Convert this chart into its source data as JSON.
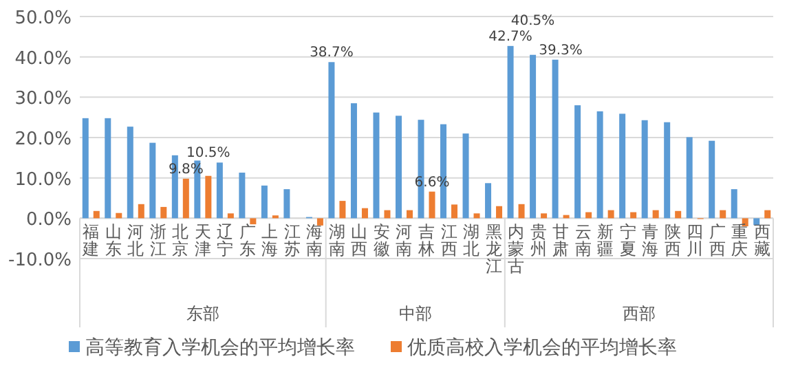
{
  "chart_data": {
    "type": "bar",
    "categories": [
      "福建",
      "山东",
      "河北",
      "浙江",
      "北京",
      "天津",
      "辽宁",
      "广东",
      "上海",
      "江苏",
      "海南",
      "湖南",
      "山西",
      "安徽",
      "河南",
      "吉林",
      "江西",
      "湖北",
      "黑龙江",
      "内蒙古",
      "贵州",
      "甘肃",
      "云南",
      "新疆",
      "宁夏",
      "青海",
      "陕西",
      "四川",
      "广西",
      "重庆",
      "西藏"
    ],
    "series": [
      {
        "name": "高等教育入学机会的平均增长率",
        "color": "#5b9bd5",
        "values": [
          24.8,
          24.8,
          22.7,
          18.7,
          15.6,
          14.3,
          13.8,
          11.3,
          8.1,
          7.2,
          0.3,
          38.7,
          28.5,
          26.2,
          25.4,
          24.4,
          23.3,
          21.0,
          8.7,
          42.7,
          40.5,
          39.3,
          28.0,
          26.5,
          25.9,
          24.3,
          23.8,
          20.1,
          19.2,
          7.2,
          -1.7
        ],
        "value_labels": [
          null,
          null,
          null,
          null,
          null,
          null,
          null,
          null,
          null,
          null,
          null,
          "38.7%",
          null,
          null,
          null,
          null,
          null,
          null,
          null,
          "42.7%",
          "40.5%",
          "39.3%",
          null,
          null,
          null,
          null,
          null,
          null,
          null,
          null,
          null
        ]
      },
      {
        "name": "优质高校入学机会的平均增长率",
        "color": "#ed7d31",
        "values": [
          1.8,
          1.3,
          3.5,
          2.8,
          9.8,
          10.5,
          1.2,
          -1.5,
          0.7,
          0.0,
          -1.8,
          4.3,
          2.5,
          2.0,
          2.0,
          6.6,
          3.4,
          1.2,
          3.0,
          3.5,
          1.2,
          0.8,
          1.5,
          2.0,
          1.5,
          2.0,
          1.8,
          -0.2,
          2.0,
          -2.0,
          2.0
        ],
        "value_labels": [
          null,
          null,
          null,
          null,
          "9.8%",
          "10.5%",
          null,
          null,
          null,
          null,
          null,
          null,
          null,
          null,
          null,
          "6.6%",
          null,
          null,
          null,
          null,
          null,
          null,
          null,
          null,
          null,
          null,
          null,
          null,
          null,
          null,
          null
        ]
      }
    ],
    "ylim": [
      -10,
      50
    ],
    "yticks": [
      {
        "value": -10,
        "label": "-10.0%"
      },
      {
        "value": 0,
        "label": "0.0%"
      },
      {
        "value": 10,
        "label": "10.0%"
      },
      {
        "value": 20,
        "label": "20.0%"
      },
      {
        "value": 30,
        "label": "30.0%"
      },
      {
        "value": 40,
        "label": "40.0%"
      },
      {
        "value": 50,
        "label": "50.0%"
      }
    ],
    "grid": "y",
    "legend": "bottom",
    "annotations": [
      "东部",
      "中部",
      "西部"
    ]
  }
}
